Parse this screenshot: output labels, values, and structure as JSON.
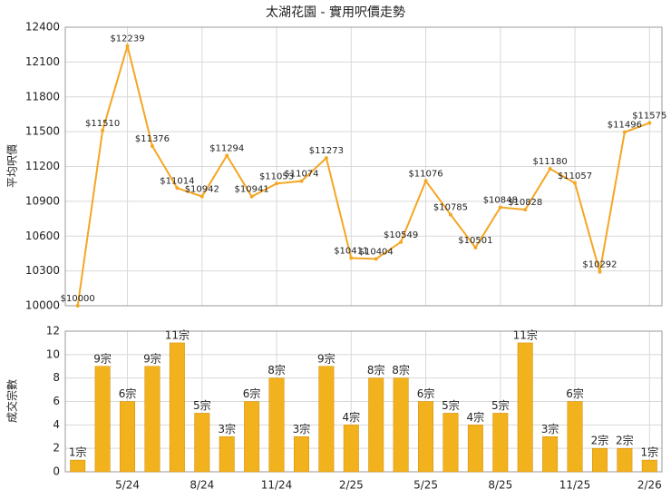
{
  "chart_data": [
    {
      "type": "line",
      "title": "太湖花園 - 實用呎價走勢",
      "ylabel": "平均呎價",
      "color": "#f5a623",
      "values": [
        10000,
        11510,
        12239,
        11376,
        11014,
        10942,
        11294,
        10941,
        11053,
        11074,
        11273,
        10411,
        10404,
        10549,
        11076,
        10785,
        10501,
        10848,
        10828,
        11180,
        11057,
        10292,
        11496,
        11575
      ],
      "value_labels": [
        "$10000",
        "$11510",
        "$12239",
        "$11376",
        "$11014",
        "$10942",
        "$11294",
        "$10941",
        "$11053",
        "$11074",
        "$11273",
        "$10411",
        "$10404",
        "$10549",
        "$11076",
        "$10785",
        "$10501",
        "$10848",
        "$10828",
        "$11180",
        "$11057",
        "$10292",
        "$11496",
        "$11575"
      ],
      "ylim": [
        10000,
        12400
      ],
      "yticks": [
        10000,
        10300,
        10600,
        10900,
        11200,
        11500,
        11800,
        12100,
        12400
      ],
      "grid": true
    },
    {
      "type": "bar",
      "ylabel": "成交宗數",
      "color": "#f2b21e",
      "categories": [
        null,
        null,
        "5/24",
        null,
        null,
        "8/24",
        null,
        null,
        "11/24",
        null,
        null,
        "2/25",
        null,
        null,
        "5/25",
        null,
        null,
        "8/25",
        null,
        null,
        "11/25",
        null,
        null,
        "2/26"
      ],
      "values": [
        1,
        9,
        6,
        9,
        11,
        5,
        3,
        6,
        8,
        3,
        9,
        4,
        8,
        8,
        6,
        5,
        4,
        5,
        11,
        3,
        6,
        2,
        2,
        1
      ],
      "value_labels": [
        "1宗",
        "9宗",
        "6宗",
        "9宗",
        "11宗",
        "5宗",
        "3宗",
        "6宗",
        "8宗",
        "3宗",
        "9宗",
        "4宗",
        "8宗",
        "8宗",
        "6宗",
        "5宗",
        "4宗",
        "5宗",
        "11宗",
        "3宗",
        "6宗",
        "2宗",
        "2宗",
        "1宗"
      ],
      "ylim": [
        0,
        12
      ],
      "yticks": [
        0,
        2,
        4,
        6,
        8,
        10,
        12
      ],
      "grid": true
    }
  ]
}
